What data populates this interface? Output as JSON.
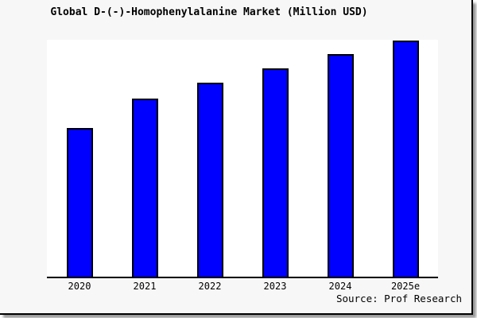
{
  "card": {
    "background": "#f7f7f7",
    "border_color": "#000000",
    "shadow_color": "#999999",
    "plot_background": "#ffffff"
  },
  "chart_data": {
    "type": "bar",
    "title": "Global D-(-)-Homophenylalanine Market (Million USD)",
    "categories": [
      "2020",
      "2021",
      "2022",
      "2023",
      "2024",
      "2025e"
    ],
    "values": [
      62.7,
      75.3,
      81.8,
      88.0,
      93.8,
      99.8
    ],
    "value_scale_note": "no y-axis shown; values estimated from bar heights as relative index with 2025e = ~100",
    "xlabel": "",
    "ylabel": "",
    "ylim": [
      0,
      100
    ],
    "y_axis_visible": false,
    "grid": false,
    "legend": false,
    "bar_color": "#0000ff",
    "bar_border_color": "#000000",
    "source": "Source: Prof Research"
  }
}
